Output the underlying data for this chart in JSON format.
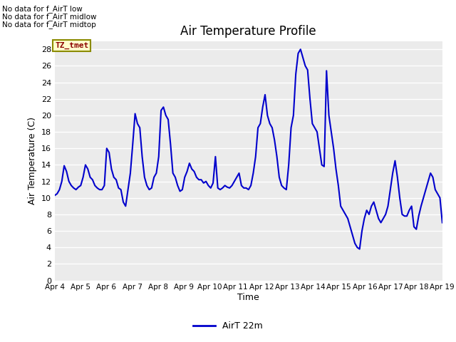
{
  "title": "Air Temperature Profile",
  "xlabel": "Time",
  "ylabel": "Air Temperature (C)",
  "legend_label": "AirT 22m",
  "ylim": [
    0,
    29
  ],
  "yticks": [
    0,
    2,
    4,
    6,
    8,
    10,
    12,
    14,
    16,
    18,
    20,
    22,
    24,
    26,
    28
  ],
  "line_color": "#0000cc",
  "line_width": 1.5,
  "fig_facecolor": "#ffffff",
  "plot_bg_color": "#ebebeb",
  "annotations_text": [
    "No data for f_AirT low",
    "No data for f_AirT midlow",
    "No data for f_AirT midtop"
  ],
  "tztmet_label": "TZ_tmet",
  "x_labels": [
    "Apr 4",
    "Apr 5",
    "Apr 6",
    "Apr 7",
    "Apr 8",
    "Apr 9",
    "Apr 10",
    "Apr 11",
    "Apr 12",
    "Apr 13",
    "Apr 14",
    "Apr 15",
    "Apr 16",
    "Apr 17",
    "Apr 18",
    "Apr 19"
  ],
  "temperature_data": [
    10.3,
    10.5,
    11.0,
    12.0,
    13.9,
    13.2,
    12.0,
    11.5,
    11.2,
    11.0,
    11.3,
    11.5,
    12.5,
    14.0,
    13.5,
    12.5,
    12.2,
    11.5,
    11.2,
    11.0,
    11.0,
    11.5,
    16.0,
    15.5,
    13.5,
    12.5,
    12.2,
    11.2,
    11.0,
    9.5,
    9.0,
    11.0,
    13.0,
    16.5,
    20.2,
    19.0,
    18.5,
    15.0,
    12.5,
    11.5,
    11.0,
    11.2,
    12.5,
    13.0,
    15.0,
    20.6,
    21.0,
    20.0,
    19.5,
    16.5,
    13.0,
    12.5,
    11.5,
    10.8,
    11.0,
    12.5,
    13.2,
    14.2,
    13.5,
    13.2,
    12.5,
    12.2,
    12.2,
    11.8,
    12.0,
    11.5,
    11.2,
    11.8,
    15.0,
    11.2,
    11.0,
    11.2,
    11.5,
    11.3,
    11.2,
    11.5,
    12.0,
    12.5,
    13.0,
    11.5,
    11.2,
    11.2,
    11.0,
    11.5,
    13.0,
    15.0,
    18.5,
    19.0,
    21.0,
    22.5,
    20.0,
    19.0,
    18.5,
    17.0,
    15.0,
    12.5,
    11.5,
    11.2,
    11.0,
    14.0,
    18.5,
    20.0,
    25.0,
    27.5,
    28.0,
    27.0,
    26.0,
    25.5,
    22.0,
    19.0,
    18.5,
    18.0,
    16.0,
    14.0,
    13.8,
    25.4,
    20.0,
    18.0,
    16.0,
    13.5,
    11.5,
    9.0,
    8.5,
    8.0,
    7.5,
    6.5,
    5.5,
    4.5,
    4.0,
    3.8,
    6.0,
    7.5,
    8.5,
    8.0,
    9.0,
    9.5,
    8.5,
    7.5,
    7.0,
    7.5,
    8.0,
    9.0,
    11.0,
    13.0,
    14.5,
    12.5,
    10.0,
    8.0,
    7.8,
    7.8,
    8.5,
    9.0,
    6.5,
    6.2,
    7.8,
    9.0,
    10.0,
    11.0,
    12.0,
    13.0,
    12.5,
    11.0,
    10.5,
    10.0,
    7.0
  ]
}
